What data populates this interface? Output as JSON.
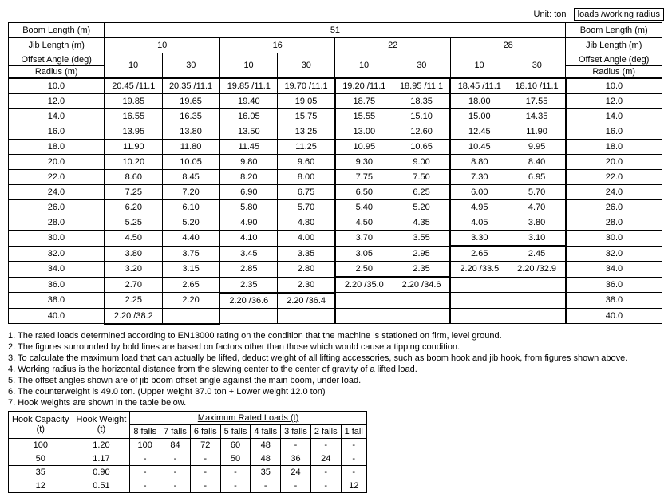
{
  "unit_label": "Unit: ton",
  "unit_box": "loads /working radius",
  "headers": {
    "boom_len": "Boom Length (m)",
    "jib_len": "Jib Length (m)",
    "offset": "Offset Angle (deg)",
    "radius": "Radius (m)"
  },
  "boom_value": "51",
  "jib_values": [
    "10",
    "16",
    "22",
    "28"
  ],
  "offset_pairs": [
    "10",
    "30",
    "10",
    "30",
    "10",
    "30",
    "10",
    "30"
  ],
  "rows": [
    {
      "r": "10.0",
      "c": [
        "20.45 /11.1",
        "20.35 /11.1",
        "19.85 /11.1",
        "19.70 /11.1",
        "19.20 /11.1",
        "18.95 /11.1",
        "18.45 /11.1",
        "18.10 /11.1"
      ]
    },
    {
      "r": "12.0",
      "c": [
        "19.85",
        "19.65",
        "19.40",
        "19.05",
        "18.75",
        "18.35",
        "18.00",
        "17.55"
      ]
    },
    {
      "r": "14.0",
      "c": [
        "16.55",
        "16.35",
        "16.05",
        "15.75",
        "15.55",
        "15.10",
        "15.00",
        "14.35"
      ]
    },
    {
      "r": "16.0",
      "c": [
        "13.95",
        "13.80",
        "13.50",
        "13.25",
        "13.00",
        "12.60",
        "12.45",
        "11.90"
      ]
    },
    {
      "r": "18.0",
      "c": [
        "11.90",
        "11.80",
        "11.45",
        "11.25",
        "10.95",
        "10.65",
        "10.45",
        "9.95"
      ]
    },
    {
      "r": "20.0",
      "c": [
        "10.20",
        "10.05",
        "9.80",
        "9.60",
        "9.30",
        "9.00",
        "8.80",
        "8.40"
      ]
    },
    {
      "r": "22.0",
      "c": [
        "8.60",
        "8.45",
        "8.20",
        "8.00",
        "7.75",
        "7.50",
        "7.30",
        "6.95"
      ]
    },
    {
      "r": "24.0",
      "c": [
        "7.25",
        "7.20",
        "6.90",
        "6.75",
        "6.50",
        "6.25",
        "6.00",
        "5.70"
      ]
    },
    {
      "r": "26.0",
      "c": [
        "6.20",
        "6.10",
        "5.80",
        "5.70",
        "5.40",
        "5.20",
        "4.95",
        "4.70"
      ]
    },
    {
      "r": "28.0",
      "c": [
        "5.25",
        "5.20",
        "4.90",
        "4.80",
        "4.50",
        "4.35",
        "4.05",
        "3.80"
      ]
    },
    {
      "r": "30.0",
      "c": [
        "4.50",
        "4.40",
        "4.10",
        "4.00",
        "3.70",
        "3.55",
        "3.30",
        "3.10"
      ]
    },
    {
      "r": "32.0",
      "c": [
        "3.80",
        "3.75",
        "3.45",
        "3.35",
        "3.05",
        "2.95",
        "2.65",
        "2.45"
      ]
    },
    {
      "r": "34.0",
      "c": [
        "3.20",
        "3.15",
        "2.85",
        "2.80",
        "2.50",
        "2.35",
        "2.20 /33.5",
        "2.20 /32.9"
      ]
    },
    {
      "r": "36.0",
      "c": [
        "2.70",
        "2.65",
        "2.35",
        "2.30",
        "2.20 /35.0",
        "2.20 /34.6",
        "",
        ""
      ]
    },
    {
      "r": "38.0",
      "c": [
        "2.25",
        "2.20",
        "2.20 /36.6",
        "2.20 /36.4",
        "",
        "",
        "",
        ""
      ]
    },
    {
      "r": "40.0",
      "c": [
        "2.20 /38.2",
        "",
        "",
        "",
        "",
        "",
        "",
        ""
      ]
    }
  ],
  "thick_top_row": 0,
  "thick_bottom_row_jib10": 15,
  "thick_bottom_row_jib16": 13,
  "thick_bottom_row_jib22": 12,
  "thick_bottom_row_jib28": 10,
  "notes": [
    "1. The rated loads determined according to EN13000 rating on the condition that the machine is stationed on firm, level ground.",
    "2. The figures surrounded by bold lines are based on factors other than those which would cause a tipping condition.",
    "3. To calculate the maximum load that can actually be lifted, deduct weight of all lifting accessories, such as boom hook and jib hook, from figures shown above.",
    "4. Working radius is the horizontal distance from the slewing center to the center of gravity of a lifted load.",
    "5. The offset angles shown are of jib boom offset angle against the main boom, under load.",
    "6. The counterweight is 49.0 ton. (Upper weight 37.0 ton + Lower weight 12.0 ton)",
    "7. Hook weights are shown in the table below."
  ],
  "hook": {
    "h1": "Hook Capacity\n(t)",
    "h2": "Hook Weight\n(t)",
    "h3": "Maximum Rated Loads (t)",
    "falls": [
      "8 falls",
      "7 falls",
      "6 falls",
      "5 falls",
      "4 falls",
      "3 falls",
      "2 falls",
      "1 fall"
    ],
    "rows": [
      {
        "cap": "100",
        "wt": "1.20",
        "v": [
          "100",
          "84",
          "72",
          "60",
          "48",
          "-",
          "-",
          "-"
        ]
      },
      {
        "cap": "50",
        "wt": "1.17",
        "v": [
          "-",
          "-",
          "-",
          "50",
          "48",
          "36",
          "24",
          "-"
        ]
      },
      {
        "cap": "35",
        "wt": "0.90",
        "v": [
          "-",
          "-",
          "-",
          "-",
          "35",
          "24",
          "-",
          "-"
        ]
      },
      {
        "cap": "12",
        "wt": "0.51",
        "v": [
          "-",
          "-",
          "-",
          "-",
          "-",
          "-",
          "-",
          "12"
        ]
      }
    ]
  }
}
